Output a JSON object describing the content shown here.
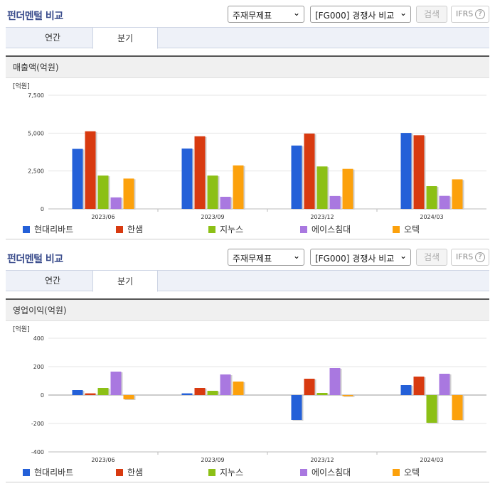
{
  "header": {
    "title": "펀더멘털 비교",
    "select_type": "주재무제표",
    "select_peer": "[FG000] 경쟁사 비교",
    "search_label": "검색",
    "ifrs_label": "IFRS",
    "help_glyph": "?",
    "chevron_glyph": "⌄"
  },
  "tabs": [
    {
      "label": "연간",
      "active": false
    },
    {
      "label": "분기",
      "active": true
    }
  ],
  "colors": {
    "현대리바트": "#2460d8",
    "한샘": "#d83a10",
    "지누스": "#8cc016",
    "에이스침대": "#a978e0",
    "오텍": "#fca10c"
  },
  "chart_data": [
    {
      "type": "bar",
      "title": "매출액(억원)",
      "unit_label": "[억원]",
      "categories": [
        "2023/06",
        "2023/09",
        "2023/12",
        "2024/03"
      ],
      "ylim": [
        0,
        7500
      ],
      "yticks": [
        "7,500",
        "5,000",
        "2,500",
        "0"
      ],
      "ytick_values": [
        7500,
        5000,
        2500,
        0
      ],
      "series": [
        {
          "name": "현대리바트",
          "values": [
            3960,
            3980,
            4180,
            5010
          ]
        },
        {
          "name": "한샘",
          "values": [
            5120,
            4790,
            4970,
            4860
          ]
        },
        {
          "name": "지누스",
          "values": [
            2200,
            2200,
            2800,
            1500
          ]
        },
        {
          "name": "에이스침대",
          "values": [
            760,
            800,
            850,
            860
          ]
        },
        {
          "name": "오텍",
          "values": [
            2000,
            2870,
            2640,
            1950
          ]
        }
      ]
    },
    {
      "type": "bar",
      "title": "영업이익(억원)",
      "unit_label": "[억원]",
      "categories": [
        "2023/06",
        "2023/09",
        "2023/12",
        "2024/03"
      ],
      "ylim": [
        -400,
        400
      ],
      "yticks": [
        "400",
        "200",
        "0",
        "-200",
        "-400"
      ],
      "ytick_values": [
        400,
        200,
        0,
        -200,
        -400
      ],
      "series": [
        {
          "name": "현대리바트",
          "values": [
            35,
            12,
            -175,
            70
          ]
        },
        {
          "name": "한샘",
          "values": [
            12,
            50,
            115,
            130
          ]
        },
        {
          "name": "지누스",
          "values": [
            50,
            30,
            15,
            -195
          ]
        },
        {
          "name": "에이스침대",
          "values": [
            165,
            145,
            190,
            150
          ]
        },
        {
          "name": "오텍",
          "values": [
            -30,
            95,
            -8,
            -175
          ]
        }
      ]
    }
  ]
}
